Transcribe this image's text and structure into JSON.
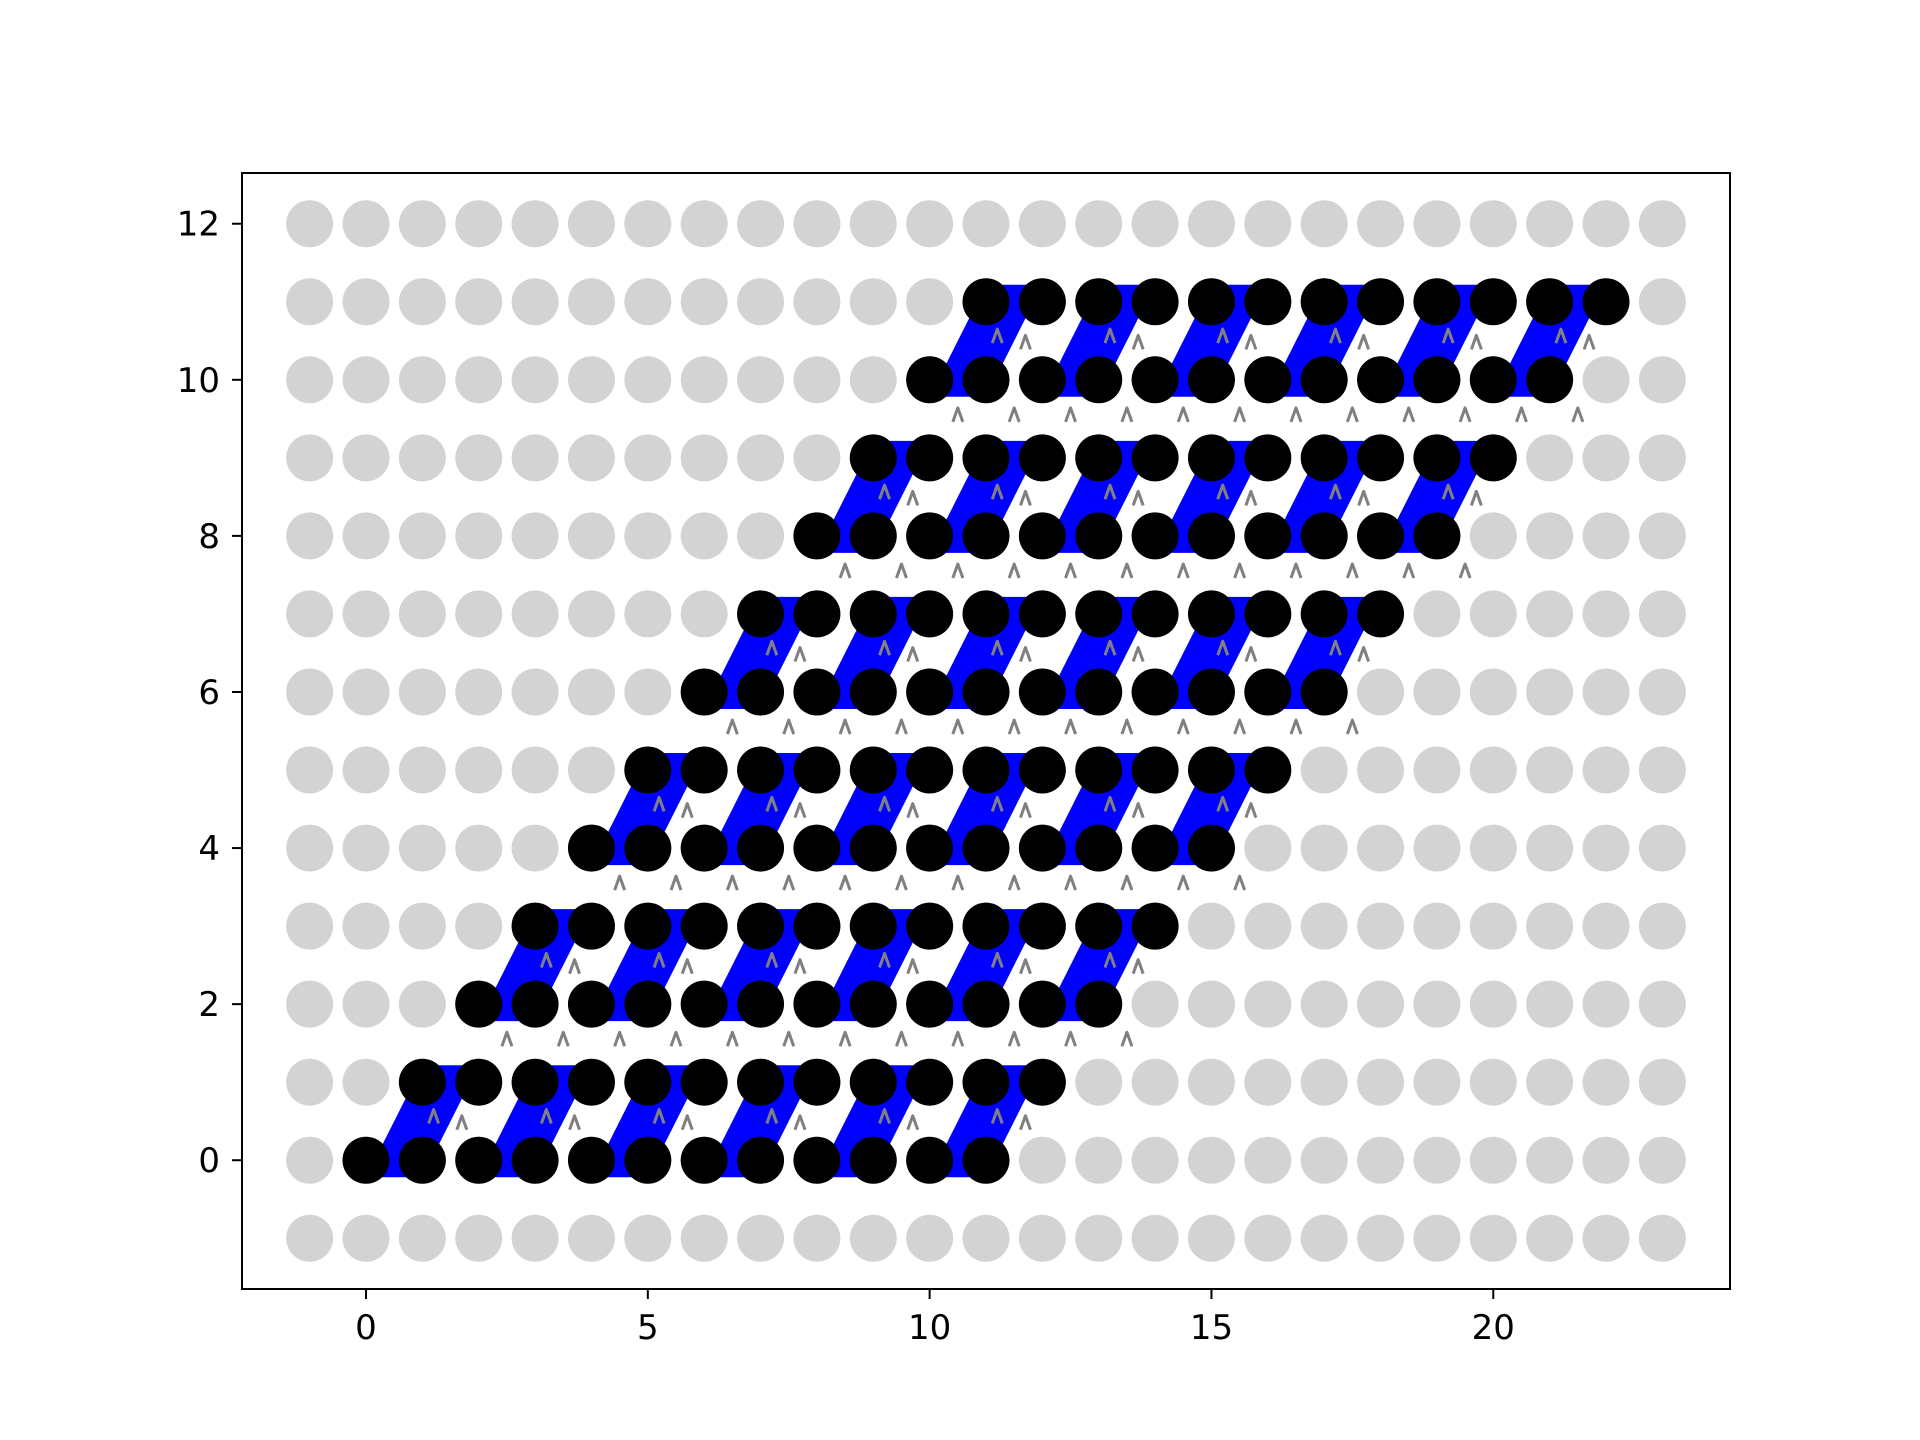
{
  "chart_data": {
    "type": "scatter",
    "title": "",
    "xlabel": "",
    "ylabel": "",
    "xlim": [
      -2.2,
      24.2
    ],
    "ylim": [
      -1.65,
      12.65
    ],
    "x_ticks": [
      0,
      5,
      10,
      15,
      20
    ],
    "y_ticks": [
      0,
      2,
      4,
      6,
      8,
      10,
      12
    ],
    "grid": false,
    "legend": "none",
    "background_lattice": {
      "x_range": [
        -1,
        23
      ],
      "y_range": [
        -1,
        12
      ],
      "color": "#d3d3d3"
    },
    "occupied_points": {
      "color": "#000000",
      "rows": [
        {
          "y": 0,
          "x": [
            0,
            1,
            2,
            3,
            4,
            5,
            6,
            7,
            8,
            9,
            10,
            11
          ]
        },
        {
          "y": 1,
          "x": [
            1,
            2,
            3,
            4,
            5,
            6,
            7,
            8,
            9,
            10,
            11,
            12
          ]
        },
        {
          "y": 2,
          "x": [
            2,
            3,
            4,
            5,
            6,
            7,
            8,
            9,
            10,
            11,
            12,
            13
          ]
        },
        {
          "y": 3,
          "x": [
            3,
            4,
            5,
            6,
            7,
            8,
            9,
            10,
            11,
            12,
            13,
            14
          ]
        },
        {
          "y": 4,
          "x": [
            4,
            5,
            6,
            7,
            8,
            9,
            10,
            11,
            12,
            13,
            14,
            15
          ]
        },
        {
          "y": 5,
          "x": [
            5,
            6,
            7,
            8,
            9,
            10,
            11,
            12,
            13,
            14,
            15,
            16
          ]
        },
        {
          "y": 6,
          "x": [
            6,
            7,
            8,
            9,
            10,
            11,
            12,
            13,
            14,
            15,
            16,
            17
          ]
        },
        {
          "y": 7,
          "x": [
            7,
            8,
            9,
            10,
            11,
            12,
            13,
            14,
            15,
            16,
            17,
            18
          ]
        },
        {
          "y": 8,
          "x": [
            8,
            9,
            10,
            11,
            12,
            13,
            14,
            15,
            16,
            17,
            18,
            19
          ]
        },
        {
          "y": 9,
          "x": [
            9,
            10,
            11,
            12,
            13,
            14,
            15,
            16,
            17,
            18,
            19,
            20
          ]
        },
        {
          "y": 10,
          "x": [
            10,
            11,
            12,
            13,
            14,
            15,
            16,
            17,
            18,
            19,
            20,
            21
          ]
        },
        {
          "y": 11,
          "x": [
            11,
            12,
            13,
            14,
            15,
            16,
            17,
            18,
            19,
            20,
            21,
            22
          ]
        }
      ]
    },
    "plaquettes": {
      "color": "#0000ff",
      "shape": "parallelogram (x,y)-(x+1,y)-(x+2,y+1)-(x+1,y+1)",
      "rows": [
        {
          "y": 0,
          "x_start": [
            0,
            2,
            4,
            6,
            8,
            10
          ]
        },
        {
          "y": 2,
          "x_start": [
            2,
            4,
            6,
            8,
            10,
            12
          ]
        },
        {
          "y": 4,
          "x_start": [
            4,
            6,
            8,
            10,
            12,
            14
          ]
        },
        {
          "y": 6,
          "x_start": [
            6,
            8,
            10,
            12,
            14,
            16
          ]
        },
        {
          "y": 8,
          "x_start": [
            8,
            10,
            12,
            14,
            16,
            18
          ]
        },
        {
          "y": 10,
          "x_start": [
            10,
            12,
            14,
            16,
            18,
            20
          ]
        }
      ]
    },
    "arrows": {
      "color": "#808080",
      "glyph": "^"
    }
  }
}
